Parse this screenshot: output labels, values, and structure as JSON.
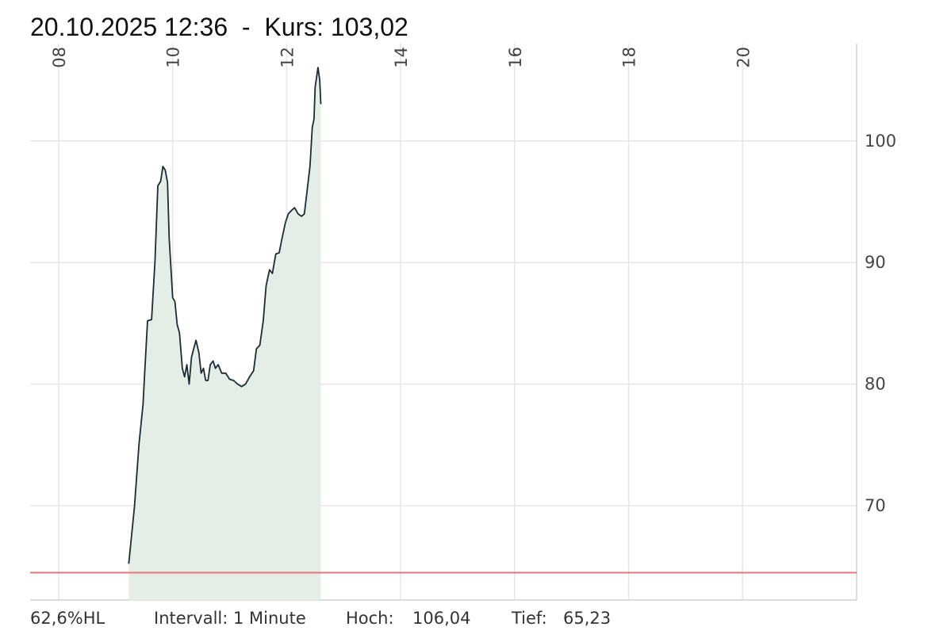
{
  "chart_data": {
    "type": "line",
    "title": "20.10.2025 12:36  -  Kurs: 103,02",
    "x": [
      9.23,
      9.33,
      9.41,
      9.48,
      9.51,
      9.56,
      9.63,
      9.69,
      9.74,
      9.79,
      9.83,
      9.87,
      9.91,
      9.94,
      10.0,
      10.04,
      10.08,
      10.12,
      10.17,
      10.21,
      10.25,
      10.29,
      10.33,
      10.37,
      10.41,
      10.46,
      10.5,
      10.54,
      10.58,
      10.62,
      10.66,
      10.71,
      10.75,
      10.8,
      10.86,
      10.93,
      11.0,
      11.07,
      11.14,
      11.21,
      11.28,
      11.35,
      11.42,
      11.47,
      11.53,
      11.59,
      11.64,
      11.7,
      11.75,
      11.81,
      11.87,
      11.92,
      11.98,
      12.03,
      12.09,
      12.14,
      12.2,
      12.26,
      12.31,
      12.36,
      12.41,
      12.45,
      12.48,
      12.5,
      12.55,
      12.58,
      12.6
    ],
    "series": [
      {
        "color": "#1c2b33",
        "fill": "#e5eee6",
        "values": [
          65.23,
          69.9,
          75.1,
          78.3,
          80.9,
          85.2,
          85.3,
          90.1,
          96.3,
          96.7,
          97.9,
          97.6,
          96.6,
          92.0,
          87.1,
          86.8,
          84.9,
          84.2,
          81.3,
          80.6,
          81.6,
          80.0,
          82.2,
          82.9,
          83.6,
          82.6,
          80.9,
          81.3,
          80.3,
          80.3,
          81.6,
          81.9,
          81.3,
          81.6,
          80.9,
          80.9,
          80.4,
          80.3,
          80.0,
          79.8,
          80.0,
          80.6,
          81.1,
          82.9,
          83.2,
          85.2,
          88.1,
          89.4,
          89.1,
          90.7,
          90.8,
          92.0,
          93.3,
          94.0,
          94.3,
          94.5,
          94.0,
          93.8,
          94.0,
          95.9,
          97.9,
          101.1,
          101.8,
          104.4,
          106.04,
          105.0,
          103.02
        ]
      }
    ],
    "xlim": [
      7.5,
      22
    ],
    "xticks": [
      {
        "value": 8,
        "label": "08"
      },
      10,
      12,
      14,
      16,
      18,
      20
    ],
    "ylim": [
      62.25,
      108
    ],
    "yticks": [
      70,
      80,
      90,
      100
    ],
    "grid": true,
    "reference_line": {
      "value": 64.5,
      "color": "#e8737b"
    },
    "footer": {
      "range": "62,6%HL",
      "interval": "Intervall: 1 Minute",
      "high_label": "Hoch:",
      "high": "106,04",
      "low_label": "Tief:",
      "low": "65,23"
    }
  }
}
